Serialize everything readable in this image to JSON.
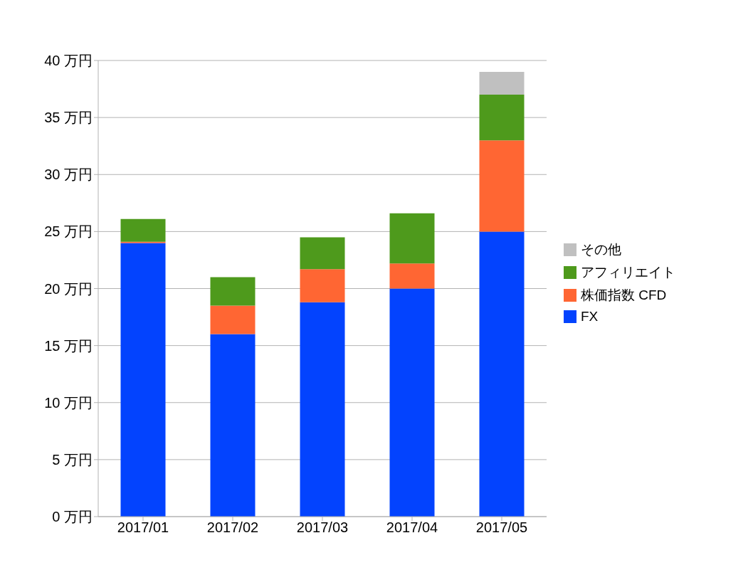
{
  "chart_data": {
    "type": "bar",
    "stacked": true,
    "categories": [
      "2017/01",
      "2017/02",
      "2017/03",
      "2017/04",
      "2017/05"
    ],
    "series": [
      {
        "name": "FX",
        "color": "#0343fe",
        "values": [
          24,
          16,
          18.8,
          20,
          25
        ]
      },
      {
        "name": "株価指数 CFD",
        "color": "#ff6633",
        "values": [
          0.1,
          2.5,
          2.9,
          2.2,
          8
        ]
      },
      {
        "name": "アフィリエイト",
        "color": "#4e9a1c",
        "values": [
          2,
          2.5,
          2.8,
          4.4,
          4
        ]
      },
      {
        "name": "その他",
        "color": "#c0c0c0",
        "values": [
          null,
          null,
          null,
          null,
          2
        ]
      }
    ],
    "ylim": [
      0,
      40
    ],
    "yticks": [
      {
        "value": 0,
        "label": "0 万円"
      },
      {
        "value": 5,
        "label": "5 万円"
      },
      {
        "value": 10,
        "label": "10 万円"
      },
      {
        "value": 15,
        "label": "15 万円"
      },
      {
        "value": 20,
        "label": "20 万円"
      },
      {
        "value": 25,
        "label": "25 万円"
      },
      {
        "value": 30,
        "label": "30 万円"
      },
      {
        "value": 35,
        "label": "35 万円"
      },
      {
        "value": 40,
        "label": "40 万円"
      }
    ],
    "grid": "y",
    "legend": "right"
  }
}
